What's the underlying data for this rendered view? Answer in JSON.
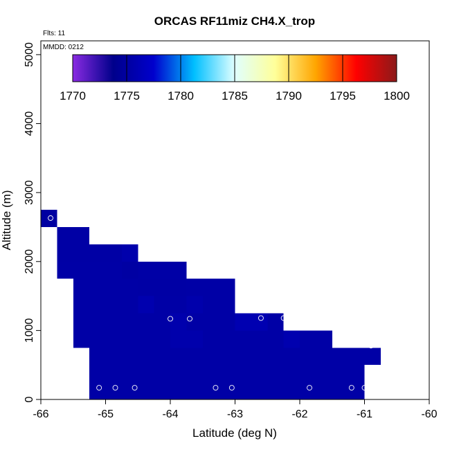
{
  "chart_data": {
    "type": "heatmap",
    "title": "ORCAS RF11miz CH4.X_trop",
    "xlabel": "Latitude (deg N)",
    "ylabel": "Altitude (m)",
    "xlim": [
      -66,
      -60
    ],
    "ylim": [
      0,
      5200
    ],
    "x_ticks": [
      -66,
      -65,
      -64,
      -63,
      -62,
      -61,
      -60
    ],
    "y_ticks": [
      0,
      1000,
      2000,
      3000,
      4000,
      5000
    ],
    "notes": {
      "flights": "Flts: 11",
      "date": "MMDD: 0212"
    },
    "colorbar": {
      "min": 1770,
      "max": 1800,
      "ticks": [
        1770,
        1775,
        1780,
        1785,
        1790,
        1795,
        1800
      ],
      "colors": [
        "#8a2be2",
        "#00008b",
        "#0000cd",
        "#00bfff",
        "#e0ffff",
        "#ffff99",
        "#ffa500",
        "#ff0000",
        "#8b1a1a"
      ]
    },
    "cell_height_m": 250,
    "cells": [
      {
        "lat": [
          -66.0,
          -65.75
        ],
        "alt_bottom": 2500,
        "value": 1775.0
      },
      {
        "lat": [
          -65.75,
          -65.25
        ],
        "alt_bottom": 2250,
        "value": 1775.2
      },
      {
        "lat": [
          -65.75,
          -65.25
        ],
        "alt_bottom": 2000,
        "value": 1775.2
      },
      {
        "lat": [
          -65.75,
          -65.25
        ],
        "alt_bottom": 1750,
        "value": 1775.3
      },
      {
        "lat": [
          -65.5,
          -64.75
        ],
        "alt_bottom": 2000,
        "value": 1775.2
      },
      {
        "lat": [
          -64.75,
          -64.5
        ],
        "alt_bottom": 2000,
        "value": 1775.6
      },
      {
        "lat": [
          -65.5,
          -64.75
        ],
        "alt_bottom": 1750,
        "value": 1775.3
      },
      {
        "lat": [
          -64.75,
          -64.5
        ],
        "alt_bottom": 1750,
        "value": 1775.1
      },
      {
        "lat": [
          -64.5,
          -63.75
        ],
        "alt_bottom": 1750,
        "value": 1775.3
      },
      {
        "lat": [
          -65.5,
          -64.5
        ],
        "alt_bottom": 1500,
        "value": 1775.3
      },
      {
        "lat": [
          -64.5,
          -63.75
        ],
        "alt_bottom": 1500,
        "value": 1775.2
      },
      {
        "lat": [
          -63.75,
          -63.0
        ],
        "alt_bottom": 1500,
        "value": 1775.3
      },
      {
        "lat": [
          -65.5,
          -64.5
        ],
        "alt_bottom": 1250,
        "value": 1775.3
      },
      {
        "lat": [
          -64.5,
          -64.25
        ],
        "alt_bottom": 1250,
        "value": 1775.8
      },
      {
        "lat": [
          -64.25,
          -63.75
        ],
        "alt_bottom": 1250,
        "value": 1775.3
      },
      {
        "lat": [
          -63.75,
          -63.5
        ],
        "alt_bottom": 1250,
        "value": 1775.6
      },
      {
        "lat": [
          -63.5,
          -63.0
        ],
        "alt_bottom": 1250,
        "value": 1775.3
      },
      {
        "lat": [
          -65.5,
          -64.0
        ],
        "alt_bottom": 1000,
        "value": 1775.3
      },
      {
        "lat": [
          -64.0,
          -63.75
        ],
        "alt_bottom": 1000,
        "value": 1775.7
      },
      {
        "lat": [
          -63.75,
          -63.0
        ],
        "alt_bottom": 1000,
        "value": 1775.3
      },
      {
        "lat": [
          -63.0,
          -62.5
        ],
        "alt_bottom": 1000,
        "value": 1775.9
      },
      {
        "lat": [
          -62.5,
          -62.25
        ],
        "alt_bottom": 1000,
        "value": 1775.3
      },
      {
        "lat": [
          -65.5,
          -64.0
        ],
        "alt_bottom": 750,
        "value": 1775.3
      },
      {
        "lat": [
          -64.0,
          -63.5
        ],
        "alt_bottom": 750,
        "value": 1775.6
      },
      {
        "lat": [
          -63.5,
          -62.25
        ],
        "alt_bottom": 750,
        "value": 1775.3
      },
      {
        "lat": [
          -62.25,
          -62.0
        ],
        "alt_bottom": 750,
        "value": 1775.8
      },
      {
        "lat": [
          -62.0,
          -61.5
        ],
        "alt_bottom": 750,
        "value": 1775.3
      },
      {
        "lat": [
          -65.25,
          -60.75
        ],
        "alt_bottom": 500,
        "value": 1775.3
      },
      {
        "lat": [
          -65.25,
          -61.0
        ],
        "alt_bottom": 250,
        "value": 1775.3
      },
      {
        "lat": [
          -65.25,
          -61.0
        ],
        "alt_bottom": 0,
        "value": 1775.3
      }
    ],
    "points": [
      {
        "lat": -65.85,
        "alt": 2630
      },
      {
        "lat": -64.0,
        "alt": 1170
      },
      {
        "lat": -63.7,
        "alt": 1170
      },
      {
        "lat": -62.6,
        "alt": 1180
      },
      {
        "lat": -62.25,
        "alt": 1180
      },
      {
        "lat": -60.9,
        "alt": 780
      },
      {
        "lat": -65.1,
        "alt": 170
      },
      {
        "lat": -64.85,
        "alt": 170
      },
      {
        "lat": -64.55,
        "alt": 170
      },
      {
        "lat": -63.3,
        "alt": 170
      },
      {
        "lat": -63.05,
        "alt": 170
      },
      {
        "lat": -61.85,
        "alt": 170
      },
      {
        "lat": -61.2,
        "alt": 170
      },
      {
        "lat": -61.0,
        "alt": 170
      }
    ]
  }
}
